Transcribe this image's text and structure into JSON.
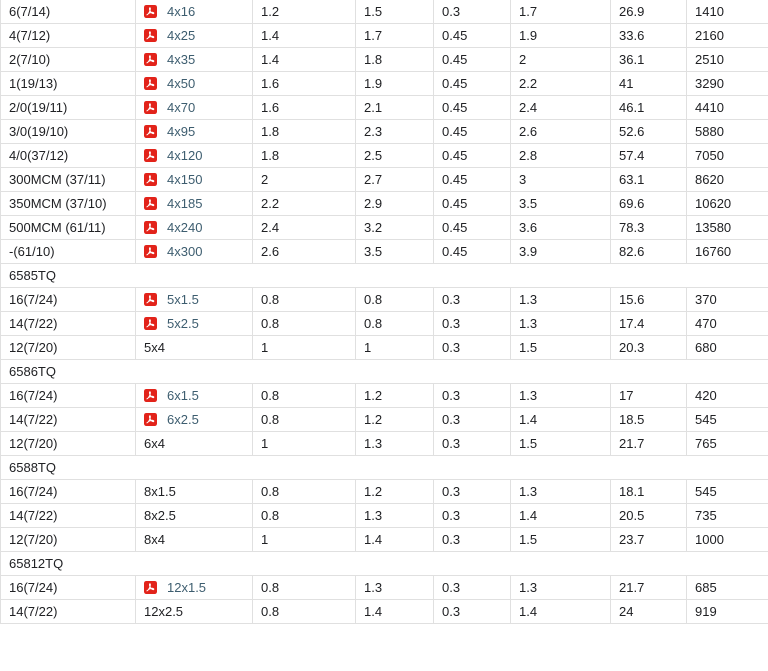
{
  "table": {
    "link_color": "#3d5d6f",
    "pdf_icon_color": "#e2231a",
    "text_color": "#202124",
    "border_color": "#e0e0e0",
    "pdf_icon_name": "pdf-icon",
    "rows": [
      {
        "type": "data",
        "label": "6(7/14)",
        "size": "4x16",
        "pdf": true,
        "values": [
          "1.2",
          "1.5",
          "0.3",
          "1.7",
          "26.9",
          "1410"
        ]
      },
      {
        "type": "data",
        "label": "4(7/12)",
        "size": "4x25",
        "pdf": true,
        "values": [
          "1.4",
          "1.7",
          "0.45",
          "1.9",
          "33.6",
          "2160"
        ]
      },
      {
        "type": "data",
        "label": "2(7/10)",
        "size": "4x35",
        "pdf": true,
        "values": [
          "1.4",
          "1.8",
          "0.45",
          "2",
          "36.1",
          "2510"
        ]
      },
      {
        "type": "data",
        "label": "1(19/13)",
        "size": "4x50",
        "pdf": true,
        "values": [
          "1.6",
          "1.9",
          "0.45",
          "2.2",
          "41",
          "3290"
        ]
      },
      {
        "type": "data",
        "label": "2/0(19/11)",
        "size": "4x70",
        "pdf": true,
        "values": [
          "1.6",
          "2.1",
          "0.45",
          "2.4",
          "46.1",
          "4410"
        ]
      },
      {
        "type": "data",
        "label": "3/0(19/10)",
        "size": "4x95",
        "pdf": true,
        "values": [
          "1.8",
          "2.3",
          "0.45",
          "2.6",
          "52.6",
          "5880"
        ]
      },
      {
        "type": "data",
        "label": "4/0(37/12)",
        "size": "4x120",
        "pdf": true,
        "values": [
          "1.8",
          "2.5",
          "0.45",
          "2.8",
          "57.4",
          "7050"
        ]
      },
      {
        "type": "data",
        "label": "300MCM\n(37/11)",
        "size": "4x150",
        "pdf": true,
        "values": [
          "2",
          "2.7",
          "0.45",
          "3",
          "63.1",
          "8620"
        ]
      },
      {
        "type": "data",
        "label": "350MCM\n(37/10)",
        "size": "4x185",
        "pdf": true,
        "values": [
          "2.2",
          "2.9",
          "0.45",
          "3.5",
          "69.6",
          "10620"
        ]
      },
      {
        "type": "data",
        "label": "500MCM\n(61/11)",
        "size": "4x240",
        "pdf": true,
        "values": [
          "2.4",
          "3.2",
          "0.45",
          "3.6",
          "78.3",
          "13580"
        ]
      },
      {
        "type": "data",
        "label": "-(61/10)",
        "size": "4x300",
        "pdf": true,
        "values": [
          "2.6",
          "3.5",
          "0.45",
          "3.9",
          "82.6",
          "16760"
        ]
      },
      {
        "type": "section",
        "label": "6585TQ"
      },
      {
        "type": "data",
        "label": "16(7/24)",
        "size": "5x1.5",
        "pdf": true,
        "values": [
          "0.8",
          "0.8",
          "0.3",
          "1.3",
          "15.6",
          "370"
        ]
      },
      {
        "type": "data",
        "label": "14(7/22)",
        "size": "5x2.5",
        "pdf": true,
        "values": [
          "0.8",
          "0.8",
          "0.3",
          "1.3",
          "17.4",
          "470"
        ]
      },
      {
        "type": "data",
        "label": "12(7/20)",
        "size": "5x4",
        "pdf": false,
        "values": [
          "1",
          "1",
          "0.3",
          "1.5",
          "20.3",
          "680"
        ]
      },
      {
        "type": "section",
        "label": "6586TQ"
      },
      {
        "type": "data",
        "label": "16(7/24)",
        "size": "6x1.5",
        "pdf": true,
        "values": [
          "0.8",
          "1.2",
          "0.3",
          "1.3",
          "17",
          "420"
        ]
      },
      {
        "type": "data",
        "label": "14(7/22)",
        "size": "6x2.5",
        "pdf": true,
        "values": [
          "0.8",
          "1.2",
          "0.3",
          "1.4",
          "18.5",
          "545"
        ]
      },
      {
        "type": "data",
        "label": "12(7/20)",
        "size": "6x4",
        "pdf": false,
        "values": [
          "1",
          "1.3",
          "0.3",
          "1.5",
          "21.7",
          "765"
        ]
      },
      {
        "type": "section",
        "label": "6588TQ"
      },
      {
        "type": "data",
        "label": "16(7/24)",
        "size": "8x1.5",
        "pdf": false,
        "values": [
          "0.8",
          "1.2",
          "0.3",
          "1.3",
          "18.1",
          "545"
        ]
      },
      {
        "type": "data",
        "label": "14(7/22)",
        "size": "8x2.5",
        "pdf": false,
        "values": [
          "0.8",
          "1.3",
          "0.3",
          "1.4",
          "20.5",
          "735"
        ]
      },
      {
        "type": "data",
        "label": "12(7/20)",
        "size": "8x4",
        "pdf": false,
        "values": [
          "1",
          "1.4",
          "0.3",
          "1.5",
          "23.7",
          "1000"
        ]
      },
      {
        "type": "section",
        "label": "65812TQ"
      },
      {
        "type": "data",
        "label": "16(7/24)",
        "size": "12x1.5",
        "pdf": true,
        "values": [
          "0.8",
          "1.3",
          "0.3",
          "1.3",
          "21.7",
          "685"
        ]
      },
      {
        "type": "data",
        "label": "14(7/22)",
        "size": "12x2.5",
        "pdf": false,
        "values": [
          "0.8",
          "1.4",
          "0.3",
          "1.4",
          "24",
          "919"
        ]
      }
    ]
  }
}
